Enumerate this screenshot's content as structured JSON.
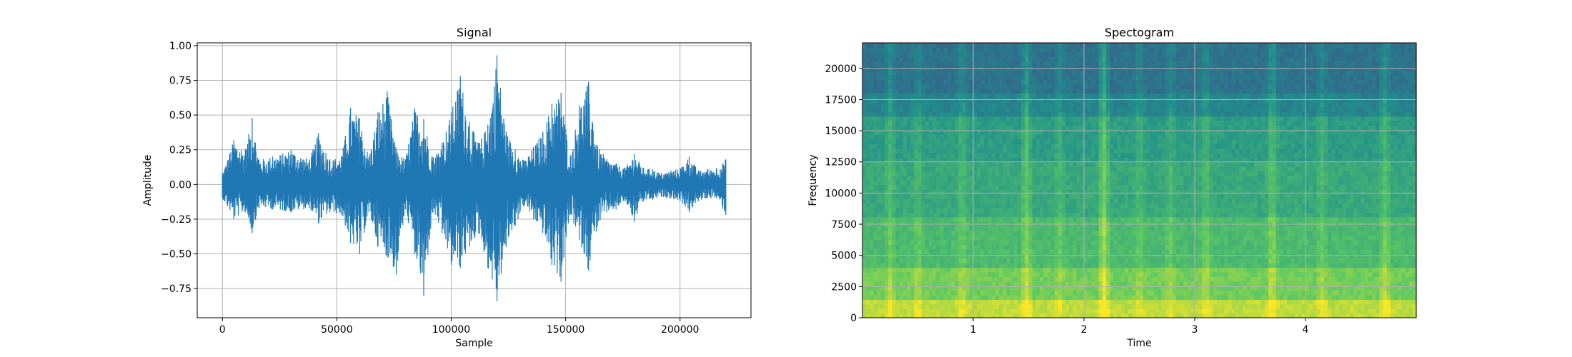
{
  "chart_data": [
    {
      "type": "line",
      "title": "Signal",
      "xlabel": "Sample",
      "ylabel": "Amplitude",
      "xlim": [
        -11000,
        231000
      ],
      "ylim": [
        -0.96,
        1.02
      ],
      "grid": true,
      "x_ticks": [
        0,
        50000,
        100000,
        150000,
        200000
      ],
      "x_tick_labels": [
        "0",
        "50000",
        "100000",
        "150000",
        "200000"
      ],
      "y_ticks": [
        1.0,
        0.75,
        0.5,
        0.25,
        0.0,
        -0.25,
        -0.5,
        -0.75
      ],
      "y_tick_labels": [
        "1.00",
        "0.75",
        "0.50",
        "0.25",
        "0.00",
        "−0.25",
        "−0.50",
        "−0.75"
      ],
      "color": "#1f77b4",
      "series": [
        {
          "x": [
            0,
            5000,
            10000,
            13000,
            16000,
            22000,
            30000,
            38000,
            42000,
            47000,
            52000,
            56000,
            60000,
            64000,
            68000,
            72000,
            76000,
            80000,
            84000,
            88000,
            92000,
            96000,
            100000,
            104000,
            108000,
            112000,
            116000,
            120000,
            124000,
            128000,
            132000,
            136000,
            140000,
            144000,
            148000,
            152000,
            156000,
            160000,
            164000,
            168000,
            172000,
            176000,
            180000,
            184000,
            188000,
            192000,
            196000,
            200000,
            204000,
            208000,
            212000,
            216000,
            220000
          ],
          "upper": [
            0.08,
            0.32,
            0.25,
            0.48,
            0.18,
            0.2,
            0.25,
            0.18,
            0.37,
            0.18,
            0.2,
            0.55,
            0.48,
            0.2,
            0.52,
            0.67,
            0.25,
            0.18,
            0.55,
            0.47,
            0.2,
            0.3,
            0.52,
            0.78,
            0.45,
            0.3,
            0.43,
            0.93,
            0.38,
            0.25,
            0.17,
            0.27,
            0.38,
            0.58,
            0.66,
            0.2,
            0.57,
            0.74,
            0.28,
            0.18,
            0.15,
            0.12,
            0.22,
            0.12,
            0.11,
            0.08,
            0.1,
            0.12,
            0.2,
            0.1,
            0.11,
            0.12,
            0.18
          ],
          "lower": [
            -0.1,
            -0.25,
            -0.2,
            -0.35,
            -0.17,
            -0.18,
            -0.2,
            -0.17,
            -0.28,
            -0.2,
            -0.22,
            -0.42,
            -0.5,
            -0.2,
            -0.45,
            -0.52,
            -0.65,
            -0.18,
            -0.5,
            -0.8,
            -0.2,
            -0.35,
            -0.58,
            -0.6,
            -0.45,
            -0.35,
            -0.6,
            -0.84,
            -0.45,
            -0.3,
            -0.15,
            -0.25,
            -0.35,
            -0.58,
            -0.7,
            -0.22,
            -0.4,
            -0.62,
            -0.3,
            -0.2,
            -0.18,
            -0.12,
            -0.27,
            -0.12,
            -0.11,
            -0.09,
            -0.1,
            -0.12,
            -0.2,
            -0.12,
            -0.1,
            -0.1,
            -0.22
          ]
        }
      ]
    },
    {
      "type": "heatmap",
      "title": "Spectogram",
      "xlabel": "Time",
      "ylabel": "Frequency",
      "xlim": [
        0,
        5.0
      ],
      "ylim": [
        0,
        22050
      ],
      "grid": true,
      "x_ticks": [
        1,
        2,
        3,
        4
      ],
      "x_tick_labels": [
        "1",
        "2",
        "3",
        "4"
      ],
      "y_ticks": [
        0,
        2500,
        5000,
        7500,
        10000,
        12500,
        15000,
        17500,
        20000
      ],
      "y_tick_labels": [
        "0",
        "2500",
        "5000",
        "7500",
        "10000",
        "12500",
        "15000",
        "17500",
        "20000"
      ],
      "colormap": "viridis",
      "bands": [
        {
          "f0": 0,
          "f1": 1500,
          "level": 0.9
        },
        {
          "f0": 1500,
          "f1": 4000,
          "level": 0.78
        },
        {
          "f0": 4000,
          "f1": 8000,
          "level": 0.68
        },
        {
          "f0": 8000,
          "f1": 12500,
          "level": 0.6
        },
        {
          "f0": 12500,
          "f1": 16000,
          "level": 0.55
        },
        {
          "f0": 16000,
          "f1": 18000,
          "level": 0.45
        },
        {
          "f0": 18000,
          "f1": 22050,
          "level": 0.38
        }
      ],
      "events": [
        {
          "t": 0.25,
          "strength": 0.1
        },
        {
          "t": 0.5,
          "strength": 0.08
        },
        {
          "t": 0.9,
          "strength": 0.1
        },
        {
          "t": 1.48,
          "strength": 0.15
        },
        {
          "t": 1.78,
          "strength": 0.08
        },
        {
          "t": 2.18,
          "strength": 0.2
        },
        {
          "t": 2.5,
          "strength": 0.08
        },
        {
          "t": 2.78,
          "strength": 0.08
        },
        {
          "t": 3.1,
          "strength": 0.1
        },
        {
          "t": 3.7,
          "strength": 0.15
        },
        {
          "t": 4.15,
          "strength": 0.08
        },
        {
          "t": 4.72,
          "strength": 0.12
        }
      ]
    }
  ]
}
